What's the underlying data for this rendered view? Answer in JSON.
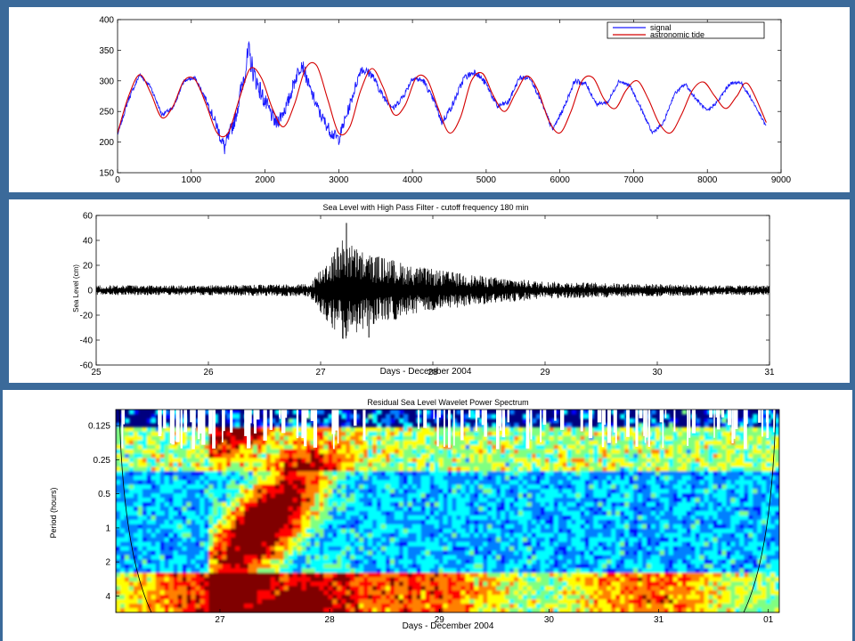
{
  "chart_data": [
    {
      "type": "line",
      "title": "",
      "xlabel": "",
      "ylabel": "",
      "xlim": [
        0,
        9000
      ],
      "ylim": [
        150,
        400
      ],
      "x_ticks": [
        0,
        1000,
        2000,
        3000,
        4000,
        5000,
        6000,
        7000,
        8000,
        9000
      ],
      "y_ticks": [
        150,
        200,
        250,
        300,
        350,
        400
      ],
      "grid": false,
      "legend": "top-right",
      "series": [
        {
          "name": "signal",
          "color": "#1a1aff",
          "x": [
            0,
            150,
            300,
            450,
            600,
            750,
            900,
            1050,
            1200,
            1350,
            1450,
            1600,
            1700,
            1780,
            1850,
            2000,
            2150,
            2300,
            2400,
            2500,
            2600,
            2750,
            2900,
            3000,
            3150,
            3300,
            3450,
            3600,
            3750,
            3900,
            4000,
            4150,
            4300,
            4400,
            4550,
            4700,
            4850,
            5000,
            5150,
            5300,
            5450,
            5600,
            5750,
            5900,
            6050,
            6200,
            6350,
            6500,
            6650,
            6800,
            6950,
            7100,
            7250,
            7400,
            7550,
            7700,
            7850,
            8000,
            8150,
            8300,
            8450,
            8600,
            8800
          ],
          "y": [
            212,
            270,
            310,
            290,
            245,
            255,
            300,
            305,
            270,
            225,
            190,
            240,
            300,
            345,
            310,
            265,
            230,
            260,
            300,
            330,
            290,
            245,
            215,
            205,
            260,
            320,
            310,
            275,
            255,
            280,
            305,
            300,
            265,
            232,
            262,
            305,
            315,
            295,
            258,
            265,
            305,
            305,
            265,
            220,
            255,
            300,
            295,
            262,
            265,
            300,
            292,
            255,
            215,
            230,
            278,
            295,
            270,
            250,
            268,
            295,
            298,
            270,
            225
          ],
          "jitter": [
            2,
            4,
            3,
            3,
            3,
            3,
            3,
            3,
            4,
            10,
            14,
            12,
            18,
            22,
            18,
            14,
            12,
            12,
            12,
            12,
            10,
            10,
            10,
            10,
            9,
            8,
            7,
            6,
            5,
            5,
            5,
            5,
            5,
            6,
            6,
            6,
            5,
            5,
            5,
            4,
            4,
            4,
            4,
            4,
            4,
            4,
            4,
            3,
            3,
            3,
            3,
            3,
            3,
            3,
            3,
            3,
            3,
            3,
            3,
            3,
            3,
            3,
            3
          ]
        },
        {
          "name": "astronomic tide",
          "color": "#d40000",
          "x": [
            0,
            150,
            300,
            450,
            600,
            750,
            900,
            1050,
            1200,
            1350,
            1500,
            1650,
            1800,
            1950,
            2100,
            2250,
            2400,
            2550,
            2700,
            2850,
            3000,
            3150,
            3300,
            3450,
            3600,
            3750,
            3900,
            4050,
            4200,
            4350,
            4500,
            4650,
            4800,
            4950,
            5100,
            5250,
            5400,
            5550,
            5700,
            5850,
            6000,
            6150,
            6300,
            6450,
            6600,
            6750,
            6900,
            7050,
            7200,
            7350,
            7500,
            7650,
            7800,
            7950,
            8100,
            8250,
            8400,
            8550,
            8800
          ],
          "y": [
            215,
            275,
            310,
            280,
            240,
            258,
            300,
            302,
            262,
            215,
            215,
            270,
            320,
            305,
            255,
            225,
            262,
            320,
            325,
            270,
            215,
            225,
            285,
            320,
            290,
            245,
            260,
            305,
            302,
            255,
            215,
            240,
            300,
            312,
            275,
            250,
            280,
            308,
            285,
            235,
            215,
            250,
            300,
            305,
            270,
            255,
            285,
            300,
            270,
            230,
            215,
            245,
            285,
            298,
            275,
            255,
            275,
            295,
            232
          ]
        }
      ]
    },
    {
      "type": "line",
      "title": "Sea Level with High Pass Filter - cutoff frequency 180 min",
      "xlabel": "Days - December 2004",
      "ylabel": "Sea Level (cm)",
      "xlim": [
        25,
        31
      ],
      "ylim": [
        -60,
        60
      ],
      "x_ticks": [
        25,
        26,
        27,
        28,
        29,
        30,
        31
      ],
      "y_ticks": [
        -60,
        -40,
        -20,
        0,
        20,
        40,
        60
      ],
      "grid": false,
      "series": [
        {
          "color": "#000000",
          "envelope_x": [
            25,
            26,
            26.9,
            27.0,
            27.2,
            27.4,
            27.6,
            27.8,
            28.0,
            28.3,
            28.6,
            29.0,
            29.5,
            30.0,
            30.5,
            31.0
          ],
          "envelope_amp": [
            4,
            4,
            5,
            18,
            42,
            30,
            26,
            20,
            17,
            13,
            10,
            7,
            6,
            5,
            4,
            4
          ],
          "peak_max": 54,
          "peak_min": -38
        }
      ]
    },
    {
      "type": "heatmap",
      "title": "Residual Sea Level Wavelet Power Spectrum",
      "xlabel": "Days - December 2004",
      "ylabel": "Period (hours)",
      "x_ticks": [
        "27",
        "28",
        "29",
        "30",
        "31",
        "01"
      ],
      "y_ticks": [
        "0.125",
        "0.25",
        "0.5",
        "1",
        "2",
        "4"
      ],
      "y_scale": "log2",
      "colormap": [
        "#00007f",
        "#0000ff",
        "#0080ff",
        "#00ffff",
        "#80ff80",
        "#ffff00",
        "#ff8000",
        "#ff0000",
        "#800000"
      ]
    }
  ]
}
